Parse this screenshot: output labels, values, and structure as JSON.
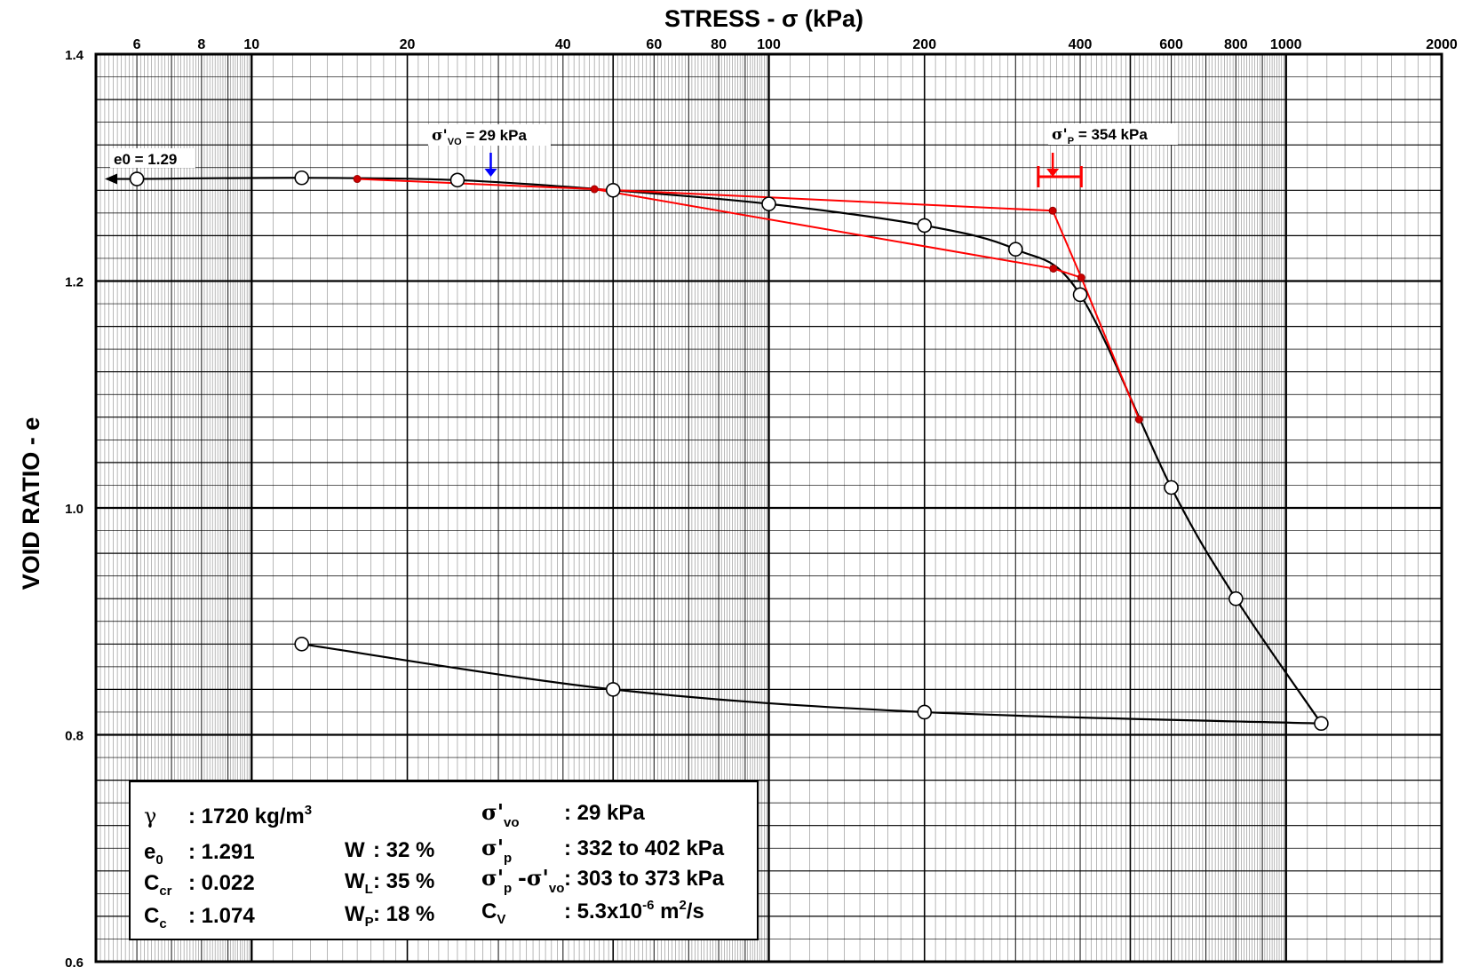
{
  "chart_data": {
    "type": "scatter",
    "title": "STRESS - σ (kPa)",
    "xlabel": "STRESS - σ (kPa)",
    "ylabel": "VOID RATIO  -  e",
    "x_scale": "log",
    "xlim": [
      5,
      2000
    ],
    "ylim": [
      0.6,
      1.4
    ],
    "grid": true,
    "x_tick_labels": [
      "6",
      "8",
      "10",
      "20",
      "40",
      "60",
      "80",
      "100",
      "200",
      "400",
      "600",
      "800",
      "1000",
      "2000"
    ],
    "x_tick_values": [
      6,
      8,
      10,
      20,
      40,
      60,
      80,
      100,
      200,
      400,
      600,
      800,
      1000,
      2000
    ],
    "y_tick_labels": [
      "0.6",
      "0.8",
      "1.0",
      "1.2",
      "1.4"
    ],
    "y_tick_values": [
      0.6,
      0.8,
      1.0,
      1.2,
      1.4
    ],
    "series": [
      {
        "name": "",
        "color": "#000000",
        "marker": "open-circle",
        "x": [
          6,
          12.5,
          25,
          50,
          100,
          200,
          300,
          400,
          600,
          800,
          1170,
          200,
          50,
          12.5
        ],
        "y": [
          1.29,
          1.291,
          1.289,
          1.28,
          1.268,
          1.249,
          1.228,
          1.188,
          1.018,
          0.92,
          0.81,
          0.82,
          0.84,
          0.88
        ]
      },
      {
        "name": "",
        "color": "#ff0000",
        "marker": "dot",
        "x": [
          16,
          46,
          354,
          402,
          355,
          520
        ],
        "y": [
          1.29,
          1.281,
          1.262,
          1.203,
          1.211,
          1.078
        ]
      }
    ],
    "annotations": {
      "e0": {
        "label": "e0 = 1.29",
        "value": 1.29
      },
      "svo": {
        "label_sym": "σ'",
        "label_sub": "VO",
        "label_rest": " = 29 kPa",
        "value": 29,
        "arrow_color": "#0000ff"
      },
      "sp": {
        "label_sym": "σ'",
        "label_sub": "P",
        "label_rest": " = 354 kPa",
        "value": 354,
        "range": [
          332,
          402
        ],
        "arrow_color": "#ff0000"
      }
    }
  },
  "properties": {
    "gamma": {
      "sym": "γ",
      "value": ": 1720 kg/m",
      "sup": "3"
    },
    "e0": {
      "sym": "e",
      "sub": "0",
      "value": ": 1.291"
    },
    "ccr": {
      "sym": "C",
      "sub": "cr",
      "value": ": 0.022"
    },
    "cc": {
      "sym": "C",
      "sub": "c",
      "value": ": 1.074"
    },
    "w": {
      "sym": "W",
      "value": ": 32 %"
    },
    "wl": {
      "sym": "W",
      "sub": "L",
      "value": ": 35 %"
    },
    "wp": {
      "sym": "W",
      "sub": "P",
      "value": ": 18 %"
    },
    "svo": {
      "sym": "σ'",
      "sub": "vo",
      "value": ": 29  kPa"
    },
    "sp": {
      "sym": "σ'",
      "sub": "p",
      "value": ": 332 to 402 kPa"
    },
    "sdiff": {
      "sym1": "σ'",
      "sub1": "p",
      "mid": "-σ'",
      "sub2": "vo",
      "value": ": 303 to 373 kPa"
    },
    "cv": {
      "sym": "C",
      "sub": "V",
      "value": ": 5.3x10",
      "sup": "-6",
      "value2": " m",
      "sup2": "2",
      "value3": "/s"
    }
  }
}
